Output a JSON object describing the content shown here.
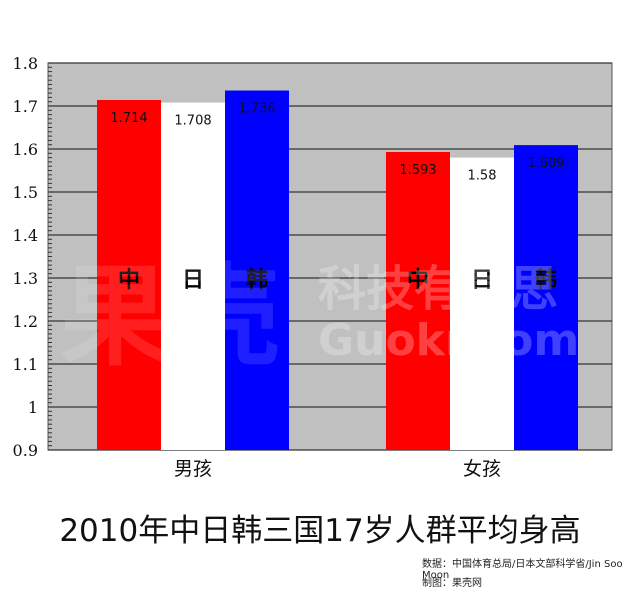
{
  "chart_data": {
    "type": "bar",
    "title": "2010年中日韩三国17岁人群平均身高",
    "categories": [
      "男孩",
      "女孩"
    ],
    "series": [
      {
        "name": "中",
        "color": "#ff0000",
        "values": [
          1.714,
          1.593
        ]
      },
      {
        "name": "日",
        "color": "#ffffff",
        "values": [
          1.708,
          1.58
        ]
      },
      {
        "name": "韩",
        "color": "#0000ff",
        "values": [
          1.736,
          1.609
        ]
      }
    ],
    "data_labels": [
      [
        "1.714",
        "1.593"
      ],
      [
        "1.708",
        "1.58"
      ],
      [
        "1.736",
        "1.609"
      ]
    ],
    "yticks": [
      "0.9",
      "1",
      "1.1",
      "1.2",
      "1.3",
      "1.4",
      "1.5",
      "1.6",
      "1.7",
      "1.8"
    ],
    "ylim": [
      0.9,
      1.8
    ],
    "grid": true,
    "plot_background": "#c0c0c0",
    "xlabel": "",
    "ylabel": ""
  },
  "source": "数据：中国体育总局/日本文部科学省/Jin Soo Moon",
  "credit": "制图：果壳网",
  "watermark": {
    "logo": "果壳",
    "slogan": "科技有意思",
    "site": "Guokr.com"
  }
}
